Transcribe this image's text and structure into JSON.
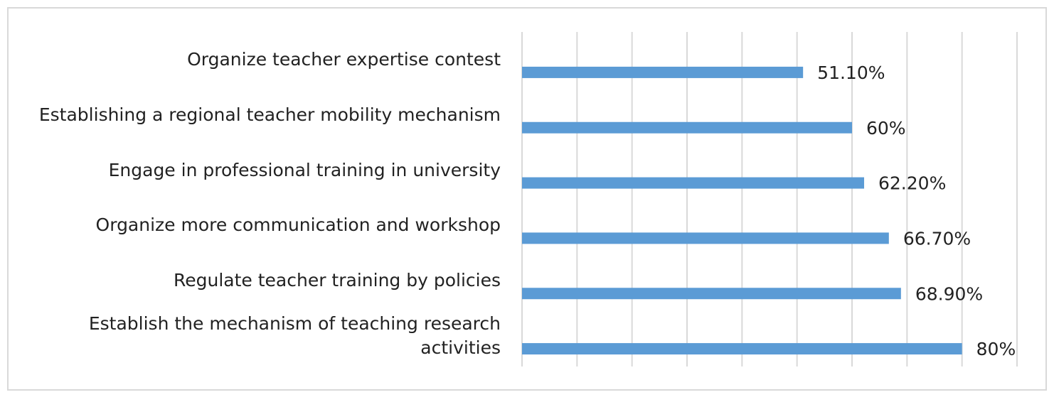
{
  "chart_data": {
    "type": "bar",
    "orientation": "horizontal",
    "categories": [
      "Organize teacher expertise contest",
      "Establishing a regional teacher mobility mechanism",
      "Engage in professional training in university",
      "Organize more communication and workshop",
      "Regulate teacher training by policies",
      "Establish the mechanism of teaching research activities"
    ],
    "values": [
      51.1,
      60,
      62.2,
      66.7,
      68.9,
      80
    ],
    "value_labels": [
      "51.10%",
      "60%",
      "62.20%",
      "66.70%",
      "68.90%",
      "80%"
    ],
    "color": "#5b9bd5",
    "xlim": [
      0,
      90
    ],
    "xticks": [
      0,
      10,
      20,
      30,
      40,
      50,
      60,
      70,
      80,
      90
    ],
    "grid": true
  }
}
